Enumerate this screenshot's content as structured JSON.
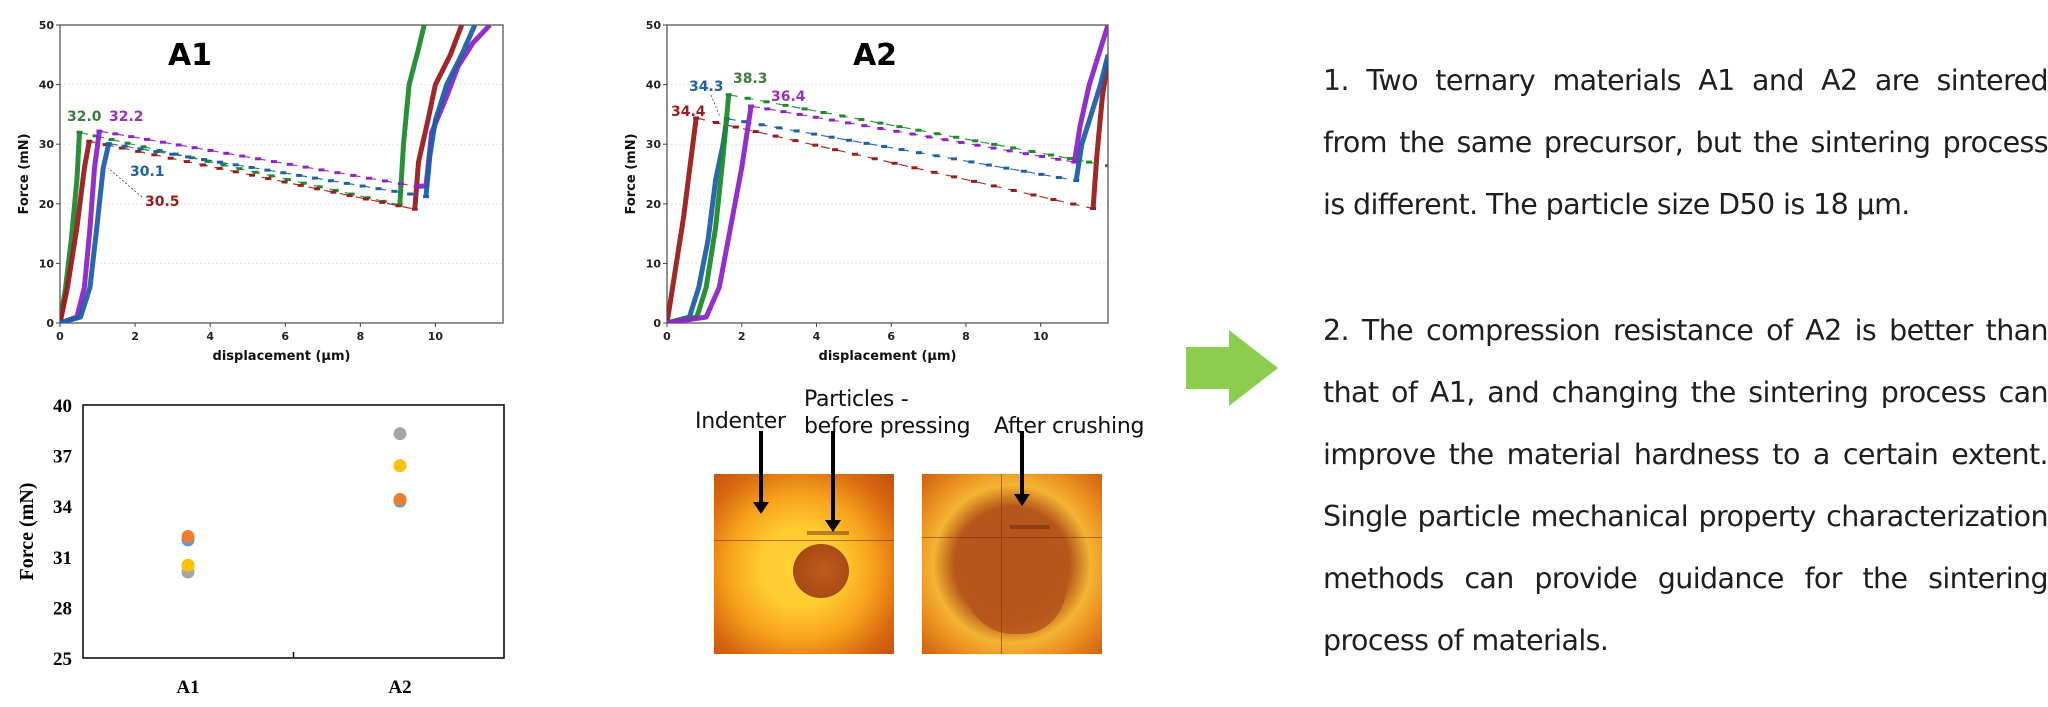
{
  "chart_data": [
    {
      "id": "A1",
      "type": "line",
      "title": "A1",
      "xlabel": "displacement (μm)",
      "ylabel": "Force (mN)",
      "xlim": [
        0,
        11.8
      ],
      "ylim": [
        0,
        50
      ],
      "xticks": [
        0,
        2,
        4,
        6,
        8,
        10
      ],
      "yticks": [
        0,
        10,
        20,
        30,
        40,
        50
      ],
      "grid": "horizontal-dotted",
      "series": [
        {
          "name": "green",
          "color": "#1e8a2e",
          "peak": 32.0,
          "load": [
            [
              0,
              0
            ],
            [
              0.15,
              6
            ],
            [
              0.3,
              14
            ],
            [
              0.45,
              24
            ],
            [
              0.52,
              32.0
            ]
          ],
          "crush": [
            [
              0.52,
              32.0
            ],
            [
              9.05,
              19.8
            ]
          ],
          "reload": [
            [
              9.05,
              19.8
            ],
            [
              9.15,
              30
            ],
            [
              9.3,
              40
            ],
            [
              9.55,
              46
            ],
            [
              9.7,
              50
            ]
          ]
        },
        {
          "name": "darkred",
          "color": "#9b1c1c",
          "peak": 30.5,
          "load": [
            [
              0,
              0
            ],
            [
              0.2,
              6
            ],
            [
              0.45,
              16
            ],
            [
              0.65,
              26
            ],
            [
              0.78,
              30.5
            ]
          ],
          "crush": [
            [
              0.78,
              30.5
            ],
            [
              9.45,
              19.1
            ]
          ],
          "reload": [
            [
              9.45,
              19.1
            ],
            [
              9.55,
              27
            ],
            [
              9.8,
              34
            ],
            [
              10.0,
              40
            ],
            [
              10.4,
              45
            ],
            [
              10.7,
              50
            ]
          ]
        },
        {
          "name": "purple",
          "color": "#8e24c8",
          "peak": 32.2,
          "load": [
            [
              0,
              0
            ],
            [
              0.45,
              1
            ],
            [
              0.65,
              6
            ],
            [
              0.8,
              16
            ],
            [
              0.92,
              26
            ],
            [
              1.05,
              32.2
            ]
          ],
          "crush": [
            [
              1.05,
              32.2
            ],
            [
              9.5,
              22.9
            ]
          ],
          "reload": [
            [
              9.5,
              22.9
            ],
            [
              9.75,
              23
            ],
            [
              9.9,
              32
            ],
            [
              10.3,
              38
            ],
            [
              10.6,
              43
            ],
            [
              11.0,
              47
            ],
            [
              11.45,
              50
            ]
          ]
        },
        {
          "name": "blue",
          "color": "#1f5fa6",
          "peak": 30.1,
          "load": [
            [
              0,
              0
            ],
            [
              0.55,
              1
            ],
            [
              0.8,
              6
            ],
            [
              0.98,
              16
            ],
            [
              1.15,
              26
            ],
            [
              1.3,
              30.1
            ]
          ],
          "crush": [
            [
              1.3,
              30.1
            ],
            [
              9.75,
              21.2
            ]
          ],
          "reload": [
            [
              9.75,
              21.2
            ],
            [
              9.85,
              28
            ],
            [
              10.0,
              34
            ],
            [
              10.3,
              40
            ],
            [
              10.7,
              45
            ],
            [
              11.05,
              50
            ]
          ]
        }
      ],
      "annotations": [
        {
          "text": "32.0",
          "color": "#3f7a45"
        },
        {
          "text": "32.2",
          "color": "#9b30c0"
        },
        {
          "text": "30.1",
          "color": "#1f5fa6"
        },
        {
          "text": "30.5",
          "color": "#9b1c1c"
        }
      ]
    },
    {
      "id": "A2",
      "type": "line",
      "title": "A2",
      "xlabel": "displacement (μm)",
      "ylabel": "Force (mN)",
      "xlim": [
        0,
        11.8
      ],
      "ylim": [
        0,
        50
      ],
      "xticks": [
        0,
        2,
        4,
        6,
        8,
        10
      ],
      "yticks": [
        0,
        10,
        20,
        30,
        40,
        50
      ],
      "grid": "horizontal-dotted",
      "series": [
        {
          "name": "darkred",
          "color": "#9b1c1c",
          "peak": 34.4,
          "load": [
            [
              0,
              0
            ],
            [
              0.2,
              8
            ],
            [
              0.45,
              18
            ],
            [
              0.65,
              28
            ],
            [
              0.78,
              34.4
            ]
          ],
          "crush": [
            [
              0.78,
              34.4
            ],
            [
              11.4,
              19.2
            ]
          ],
          "reload": [
            [
              11.4,
              19.2
            ],
            [
              11.5,
              28
            ],
            [
              11.65,
              38
            ],
            [
              11.8,
              44
            ]
          ]
        },
        {
          "name": "blue",
          "color": "#1f5fa6",
          "peak": 34.3,
          "load": [
            [
              0,
              0
            ],
            [
              0.6,
              1
            ],
            [
              0.85,
              6
            ],
            [
              1.1,
              14
            ],
            [
              1.3,
              24
            ],
            [
              1.5,
              30
            ],
            [
              1.6,
              34.3
            ]
          ],
          "crush": [
            [
              1.6,
              34.3
            ],
            [
              10.95,
              23.9
            ]
          ],
          "reload": [
            [
              10.95,
              23.9
            ],
            [
              11.1,
              30
            ],
            [
              11.4,
              36
            ],
            [
              11.6,
              40
            ],
            [
              11.8,
              45
            ]
          ]
        },
        {
          "name": "green",
          "color": "#1e8a2e",
          "peak": 38.3,
          "load": [
            [
              0,
              0
            ],
            [
              0.8,
              1
            ],
            [
              1.05,
              6
            ],
            [
              1.3,
              16
            ],
            [
              1.5,
              28
            ],
            [
              1.65,
              38.3
            ]
          ],
          "crush": [
            [
              1.65,
              38.3
            ],
            [
              11.8,
              26.4
            ]
          ],
          "reload": []
        },
        {
          "name": "purple",
          "color": "#8e24c8",
          "peak": 36.4,
          "load": [
            [
              0,
              0
            ],
            [
              1.05,
              1
            ],
            [
              1.4,
              6
            ],
            [
              1.7,
              16
            ],
            [
              2.0,
              26
            ],
            [
              2.25,
              36.4
            ]
          ],
          "crush": [
            [
              2.25,
              36.4
            ],
            [
              10.9,
              27.0
            ]
          ],
          "reload": [
            [
              10.9,
              27.0
            ],
            [
              11.05,
              33
            ],
            [
              11.3,
              40
            ],
            [
              11.6,
              46
            ],
            [
              11.8,
              50
            ]
          ]
        }
      ],
      "annotations": [
        {
          "text": "34.3",
          "color": "#1f5fa6"
        },
        {
          "text": "38.3",
          "color": "#3f7a45"
        },
        {
          "text": "36.4",
          "color": "#9b30c0"
        },
        {
          "text": "34.4",
          "color": "#9b1c1c"
        }
      ]
    },
    {
      "id": "peak-force",
      "type": "scatter",
      "title": "",
      "xlabel": "",
      "ylabel": "Force (mN)",
      "categories": [
        "A1",
        "A2"
      ],
      "ylim": [
        25,
        40
      ],
      "yticks": [
        25,
        28,
        31,
        34,
        37,
        40
      ],
      "series": [
        {
          "name": "blue",
          "color": "#5b9bd5",
          "values": [
            32.0,
            34.3
          ]
        },
        {
          "name": "orange",
          "color": "#ed7d31",
          "values": [
            32.2,
            34.4
          ]
        },
        {
          "name": "gray",
          "color": "#a5a5a5",
          "values": [
            30.1,
            38.3
          ]
        },
        {
          "name": "yellow",
          "color": "#ffc000",
          "values": [
            30.5,
            36.4
          ]
        }
      ]
    }
  ],
  "photos": {
    "label_indenter": "Indenter",
    "label_particles_line1": "Particles -",
    "label_particles_line2": "before pressing",
    "label_after": "After crushing"
  },
  "arrow": {
    "color": "#8ccd4f",
    "icon": "right-arrow-icon"
  },
  "text": {
    "para1": "1. Two ternary materials A1 and A2 are sintered from the same precursor, but the sintering process is different. The particle size D50 is 18 μm.",
    "para2": "2. The compression resistance of A2 is better than that of A1, and changing the sintering process can improve the material hardness to a certain extent. Single particle mechanical property characterization methods can provide guidance for the sintering process of materials."
  }
}
